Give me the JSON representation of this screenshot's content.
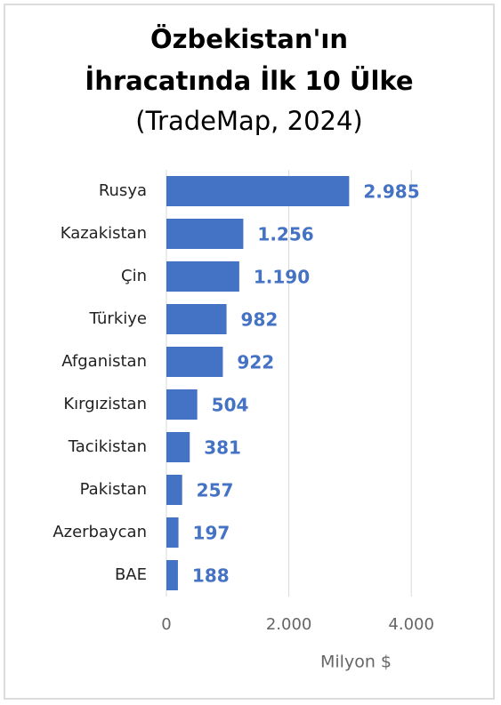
{
  "chart_data": {
    "type": "hbar",
    "title": [
      "Özbekistan'ın",
      "İhracatında İlk 10 Ülke"
    ],
    "subtitle": "(TradeMap, 2024)",
    "x_label": "Milyon $",
    "categories": [
      "Rusya",
      "Kazakistan",
      "Çin",
      "Türkiye",
      "Afganistan",
      "Kırgızistan",
      "Tacikistan",
      "Pakistan",
      "Azerbaycan",
      "BAE"
    ],
    "values": [
      2985,
      1256,
      1190,
      982,
      922,
      504,
      381,
      257,
      197,
      188
    ],
    "value_labels": [
      "2.985",
      "1.256",
      "1.190",
      "982",
      "922",
      "504",
      "381",
      "257",
      "197",
      "188"
    ],
    "color": "#4472c4",
    "xlim": [
      0,
      5000
    ],
    "xticks": [
      0,
      {
        "value": 2000,
        "label": "2.000"
      },
      {
        "value": 4000,
        "label": "4.000"
      }
    ],
    "grid": true
  }
}
